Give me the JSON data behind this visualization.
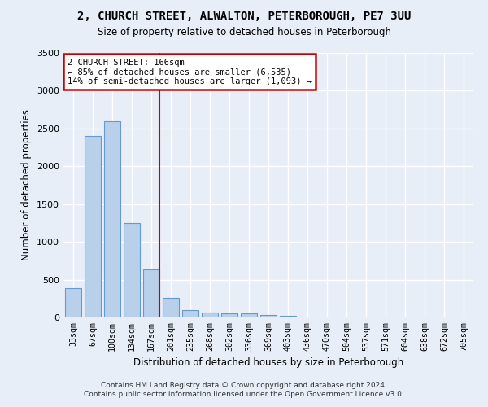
{
  "title": "2, CHURCH STREET, ALWALTON, PETERBOROUGH, PE7 3UU",
  "subtitle": "Size of property relative to detached houses in Peterborough",
  "xlabel": "Distribution of detached houses by size in Peterborough",
  "ylabel": "Number of detached properties",
  "categories": [
    "33sqm",
    "67sqm",
    "100sqm",
    "134sqm",
    "167sqm",
    "201sqm",
    "235sqm",
    "268sqm",
    "302sqm",
    "336sqm",
    "369sqm",
    "403sqm",
    "436sqm",
    "470sqm",
    "504sqm",
    "537sqm",
    "571sqm",
    "604sqm",
    "638sqm",
    "672sqm",
    "705sqm"
  ],
  "values": [
    385,
    2400,
    2600,
    1250,
    640,
    260,
    100,
    60,
    57,
    50,
    35,
    25,
    0,
    0,
    0,
    0,
    0,
    0,
    0,
    0,
    0
  ],
  "bar_color": "#b8d0ea",
  "bar_edge_color": "#6699cc",
  "background_color": "#e8eef8",
  "grid_color": "#ffffff",
  "red_line_index": 4,
  "annotation_line1": "2 CHURCH STREET: 166sqm",
  "annotation_line2": "← 85% of detached houses are smaller (6,535)",
  "annotation_line3": "14% of semi-detached houses are larger (1,093) →",
  "annotation_box_color": "#ffffff",
  "annotation_box_edge": "#cc0000",
  "ylim": [
    0,
    3500
  ],
  "yticks": [
    0,
    500,
    1000,
    1500,
    2000,
    2500,
    3000,
    3500
  ],
  "title_fontsize": 10,
  "subtitle_fontsize": 8.5,
  "footer1": "Contains HM Land Registry data © Crown copyright and database right 2024.",
  "footer2": "Contains public sector information licensed under the Open Government Licence v3.0."
}
